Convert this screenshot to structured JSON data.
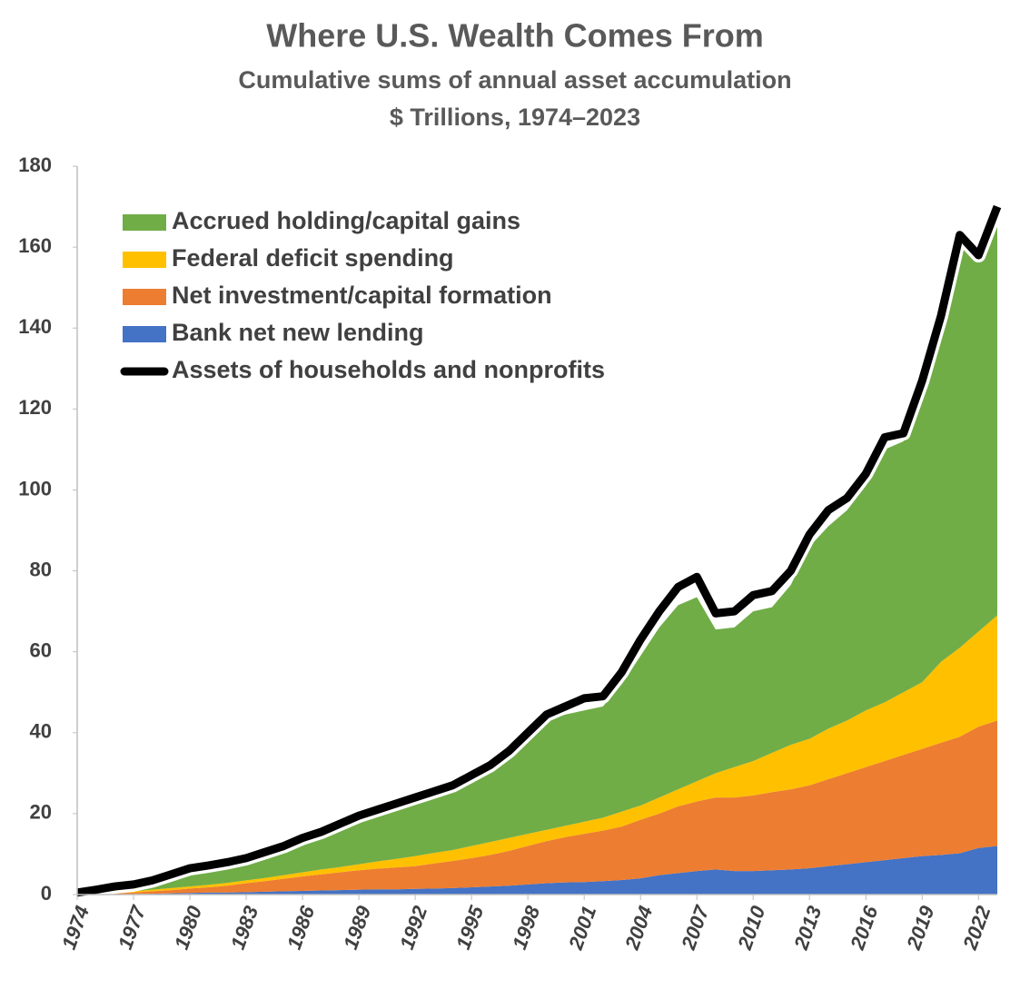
{
  "chart_data": {
    "type": "area",
    "stacked": true,
    "title": "Where U.S. Wealth Comes From",
    "subtitle": [
      "Cumulative sums of annual asset accumulation",
      "$ Trillions, 1974–2023"
    ],
    "x": [
      1974,
      1975,
      1976,
      1977,
      1978,
      1979,
      1980,
      1981,
      1982,
      1983,
      1984,
      1985,
      1986,
      1987,
      1988,
      1989,
      1990,
      1991,
      1992,
      1993,
      1994,
      1995,
      1996,
      1997,
      1998,
      1999,
      2000,
      2001,
      2002,
      2003,
      2004,
      2005,
      2006,
      2007,
      2008,
      2009,
      2010,
      2011,
      2012,
      2013,
      2014,
      2015,
      2016,
      2017,
      2018,
      2019,
      2020,
      2021,
      2022,
      2023
    ],
    "xlim": [
      1974,
      2023
    ],
    "xticks": [
      1974,
      1977,
      1980,
      1983,
      1986,
      1989,
      1992,
      1995,
      1998,
      2001,
      2004,
      2007,
      2010,
      2013,
      2016,
      2019,
      2022
    ],
    "ylim": [
      0,
      180
    ],
    "yticks": [
      0,
      20,
      40,
      60,
      80,
      100,
      120,
      140,
      160,
      180
    ],
    "grid": false,
    "legend": "top-left",
    "series": [
      {
        "name": "Bank net new lending",
        "color": "#4472c4",
        "values": [
          0,
          0,
          0.1,
          0.1,
          0.2,
          0.3,
          0.4,
          0.5,
          0.5,
          0.6,
          0.7,
          0.8,
          0.9,
          1.0,
          1.1,
          1.2,
          1.3,
          1.3,
          1.4,
          1.5,
          1.6,
          1.8,
          2.0,
          2.2,
          2.5,
          2.8,
          3.0,
          3.1,
          3.3,
          3.6,
          4.0,
          4.8,
          5.3,
          5.8,
          6.2,
          5.8,
          5.8,
          6.0,
          6.2,
          6.5,
          7.0,
          7.5,
          8.0,
          8.5,
          9.0,
          9.5,
          9.8,
          10.2,
          11.5,
          12.0
        ]
      },
      {
        "name": "Net investment/capital formation",
        "color": "#ed7d31",
        "values": [
          0,
          0.1,
          0.2,
          0.4,
          0.6,
          0.8,
          1.1,
          1.3,
          1.7,
          2.2,
          2.6,
          3.1,
          3.6,
          4.0,
          4.4,
          4.8,
          5.1,
          5.4,
          5.6,
          6.2,
          6.7,
          7.2,
          7.8,
          8.6,
          9.5,
          10.4,
          11.2,
          11.9,
          12.5,
          13.2,
          14.5,
          15.2,
          16.5,
          17.2,
          17.8,
          18.2,
          18.7,
          19.3,
          19.8,
          20.5,
          21.5,
          22.5,
          23.5,
          24.5,
          25.5,
          26.5,
          27.7,
          28.8,
          30.0,
          31.0
        ]
      },
      {
        "name": "Federal deficit spending",
        "color": "#ffc000",
        "values": [
          0,
          0.1,
          0.2,
          0.3,
          0.4,
          0.5,
          0.5,
          0.6,
          0.7,
          0.7,
          0.8,
          0.9,
          1.0,
          1.2,
          1.3,
          1.5,
          1.8,
          2.1,
          2.5,
          2.6,
          2.7,
          3.0,
          3.2,
          3.2,
          3.0,
          2.8,
          2.8,
          3.0,
          3.2,
          3.7,
          3.5,
          4.0,
          4.2,
          5.0,
          6.0,
          7.5,
          8.5,
          9.7,
          11.0,
          11.5,
          12.5,
          13.0,
          14.0,
          14.5,
          15.5,
          16.5,
          20.0,
          22.0,
          23.5,
          26.0
        ]
      },
      {
        "name": "Accrued holding/capital gains",
        "color": "#70ad47",
        "values": [
          0.5,
          0.8,
          1.3,
          1.5,
          2.0,
          2.9,
          4.0,
          4.3,
          4.6,
          5.0,
          5.9,
          6.7,
          7.8,
          8.6,
          10.0,
          11.3,
          12.1,
          13.0,
          13.7,
          14.2,
          14.8,
          16.5,
          18.0,
          20.5,
          24.0,
          27.0,
          27.5,
          27.5,
          27.5,
          31.5,
          37.0,
          42.0,
          45.5,
          45.5,
          35.5,
          34.5,
          37.0,
          36.0,
          39.5,
          47.5,
          50.0,
          52.0,
          55.5,
          62.5,
          62.0,
          73.5,
          84.5,
          101.0,
          92.0,
          99.0
        ]
      },
      {
        "name": "Assets of households and nonprofits",
        "color": "#000000",
        "kind": "line",
        "values": [
          0.5,
          1.2,
          2,
          2.5,
          3.5,
          5,
          6.5,
          7.2,
          8,
          9,
          10.5,
          12,
          14,
          15.5,
          17.5,
          19.5,
          21,
          22.5,
          24,
          25.5,
          27,
          29.5,
          32,
          35.5,
          40,
          44.5,
          46.5,
          48.5,
          49,
          55,
          63,
          70,
          76,
          78.5,
          69.5,
          70,
          74,
          75,
          80,
          89,
          95,
          98,
          104,
          113,
          114,
          127,
          143,
          163,
          158,
          170
        ]
      }
    ]
  }
}
